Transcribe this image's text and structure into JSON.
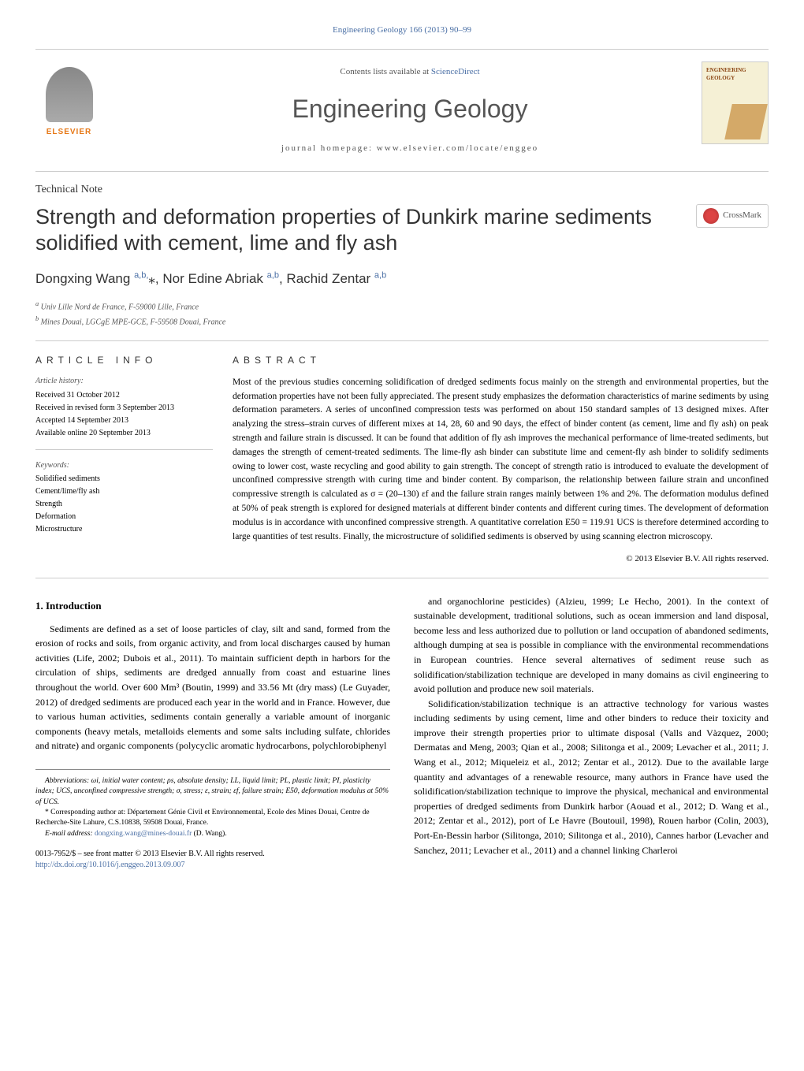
{
  "header": {
    "top_link": "Engineering Geology 166 (2013) 90–99",
    "contents_available": "Contents lists available at ",
    "sciencedirect": "ScienceDirect",
    "journal_title": "Engineering Geology",
    "homepage_label": "journal homepage: www.elsevier.com/locate/enggeo",
    "elsevier": "ELSEVIER",
    "cover_title": "ENGINEERING GEOLOGY",
    "crossmark": "CrossMark"
  },
  "paper": {
    "note_type": "Technical Note",
    "title": "Strength and deformation properties of Dunkirk marine sediments solidified with cement, lime and fly ash",
    "authors_html": "Dongxing Wang <sup>a,b,</sup>*, Nor Edine Abriak <sup>a,b</sup>, Rachid Zentar <sup>a,b</sup>",
    "affiliations": {
      "a": "Univ Lille Nord de France, F-59000 Lille, France",
      "b": "Mines Douai, LGCgE MPE-GCE, F-59508 Douai, France"
    }
  },
  "article_info": {
    "heading": "ARTICLE INFO",
    "history_label": "Article history:",
    "received": "Received 31 October 2012",
    "received_revised": "Received in revised form 3 September 2013",
    "accepted": "Accepted 14 September 2013",
    "available": "Available online 20 September 2013",
    "keywords_label": "Keywords:",
    "keywords": [
      "Solidified sediments",
      "Cement/lime/fly ash",
      "Strength",
      "Deformation",
      "Microstructure"
    ]
  },
  "abstract": {
    "heading": "ABSTRACT",
    "text": "Most of the previous studies concerning solidification of dredged sediments focus mainly on the strength and environmental properties, but the deformation properties have not been fully appreciated. The present study emphasizes the deformation characteristics of marine sediments by using deformation parameters. A series of unconfined compression tests was performed on about 150 standard samples of 13 designed mixes. After analyzing the stress–strain curves of different mixes at 14, 28, 60 and 90 days, the effect of binder content (as cement, lime and fly ash) on peak strength and failure strain is discussed. It can be found that addition of fly ash improves the mechanical performance of lime-treated sediments, but damages the strength of cement-treated sediments. The lime-fly ash binder can substitute lime and cement-fly ash binder to solidify sediments owing to lower cost, waste recycling and good ability to gain strength. The concept of strength ratio is introduced to evaluate the development of unconfined compressive strength with curing time and binder content. By comparison, the relationship between failure strain and unconfined compressive strength is calculated as σ = (20–130) εf and the failure strain ranges mainly between 1% and 2%. The deformation modulus defined at 50% of peak strength is explored for designed materials at different binder contents and different curing times. The development of deformation modulus is in accordance with unconfined compressive strength. A quantitative correlation E50 = 119.91 UCS is therefore determined according to large quantities of test results. Finally, the microstructure of solidified sediments is observed by using scanning electron microscopy.",
    "copyright": "© 2013 Elsevier B.V. All rights reserved."
  },
  "intro": {
    "heading": "1. Introduction",
    "col1_p1": "Sediments are defined as a set of loose particles of clay, silt and sand, formed from the erosion of rocks and soils, from organic activity, and from local discharges caused by human activities (Life, 2002; Dubois et al., 2011). To maintain sufficient depth in harbors for the circulation of ships, sediments are dredged annually from coast and estuarine lines throughout the world. Over 600 Mm³ (Boutin, 1999) and 33.56 Mt (dry mass) (Le Guyader, 2012) of dredged sediments are produced each year in the world and in France. However, due to various human activities, sediments contain generally a variable amount of inorganic components (heavy metals, metalloids elements and some salts including sulfate, chlorides and nitrate) and organic components (polycyclic aromatic hydrocarbons, polychlorobiphenyl",
    "col2_p1": "and organochlorine pesticides) (Alzieu, 1999; Le Hecho, 2001). In the context of sustainable development, traditional solutions, such as ocean immersion and land disposal, become less and less authorized due to pollution or land occupation of abandoned sediments, although dumping at sea is possible in compliance with the environmental recommendations in European countries. Hence several alternatives of sediment reuse such as solidification/stabilization technique are developed in many domains as civil engineering to avoid pollution and produce new soil materials.",
    "col2_p2": "Solidification/stabilization technique is an attractive technology for various wastes including sediments by using cement, lime and other binders to reduce their toxicity and improve their strength properties prior to ultimate disposal (Valls and Vàzquez, 2000; Dermatas and Meng, 2003; Qian et al., 2008; Silitonga et al., 2009; Levacher et al., 2011; J. Wang et al., 2012; Miqueleiz et al., 2012; Zentar et al., 2012). Due to the available large quantity and advantages of a renewable resource, many authors in France have used the solidification/stabilization technique to improve the physical, mechanical and environmental properties of dredged sediments from Dunkirk harbor (Aouad et al., 2012; D. Wang et al., 2012; Zentar et al., 2012), port of Le Havre (Boutouil, 1998), Rouen harbor (Colin, 2003), Port-En-Bessin harbor (Silitonga, 2010; Silitonga et al., 2010), Cannes harbor (Levacher and Sanchez, 2011; Levacher et al., 2011) and a channel linking Charleroi"
  },
  "footnotes": {
    "abbrev": "Abbreviations: ωi, initial water content; ρs, absolute density; LL, liquid limit; PL, plastic limit; PI, plasticity index; UCS, unconfined compressive strength; σ, stress; ε, strain; εf, failure strain; E50, deformation modulus at 50% of UCS.",
    "corresp": "* Corresponding author at: Département Génie Civil et Environnemental, Ecole des Mines Douai, Centre de Recherche-Site Lahure, C.S.10838, 59508 Douai, France.",
    "email_label": "E-mail address: ",
    "email": "dongxing.wang@mines-douai.fr",
    "email_suffix": " (D. Wang).",
    "issn": "0013-7952/$ – see front matter © 2013 Elsevier B.V. All rights reserved.",
    "doi": "http://dx.doi.org/10.1016/j.enggeo.2013.09.007"
  },
  "colors": {
    "link": "#4a6fa5",
    "orange": "#e67817",
    "text": "#333333"
  }
}
